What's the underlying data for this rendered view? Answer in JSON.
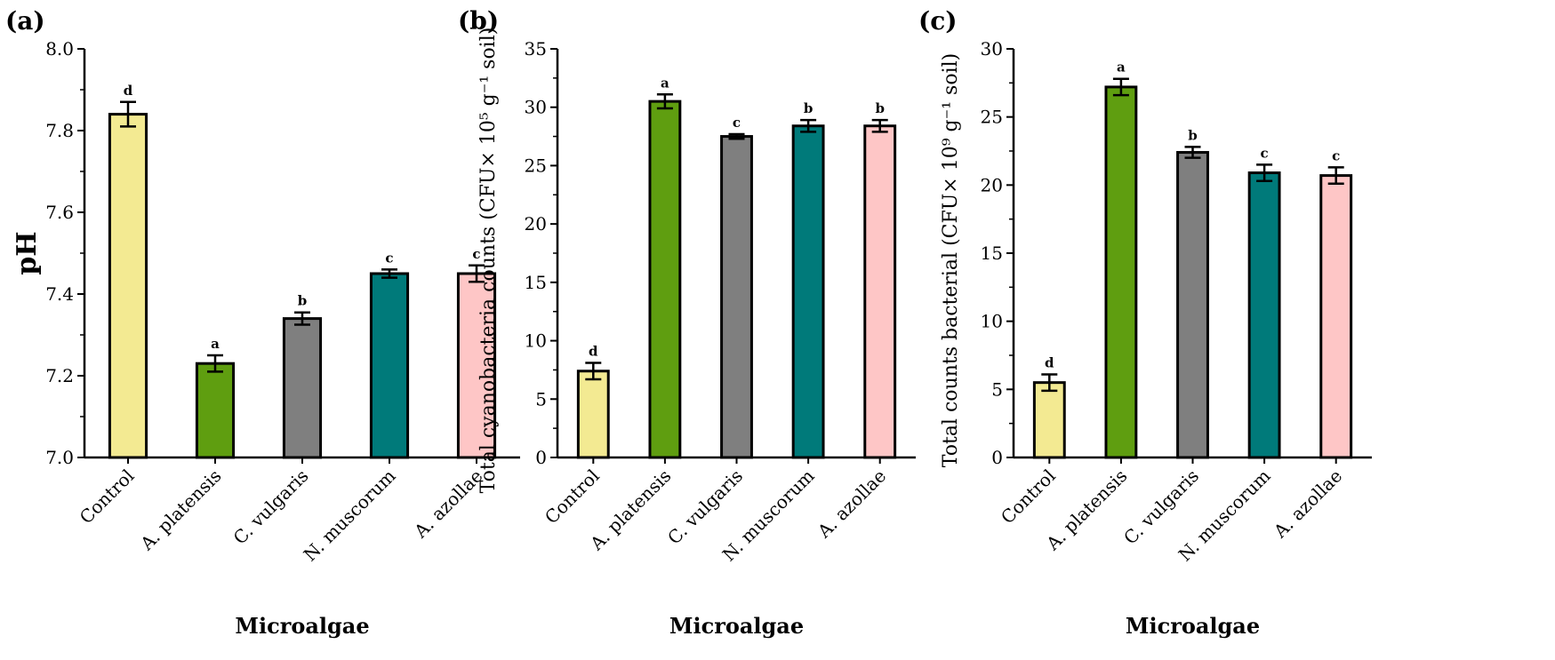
{
  "chart_data": [
    {
      "type": "bar",
      "panel_label": "(a)",
      "title": "",
      "xlabel": "Microalgae",
      "ylabel": "pH",
      "ylim": [
        7.0,
        8.0
      ],
      "yticks": [
        "7.0",
        "7.2",
        "7.4",
        "7.6",
        "7.8",
        "8.0"
      ],
      "categories": [
        "Control",
        "A. platensis",
        "C. vulgaris",
        "N. muscorum",
        "A. azollae"
      ],
      "values": [
        7.84,
        7.23,
        7.34,
        7.45,
        7.45
      ],
      "errors": [
        0.03,
        0.02,
        0.015,
        0.01,
        0.02
      ],
      "letters": [
        "d",
        "a",
        "b",
        "c",
        "c"
      ],
      "colors": [
        "#f3ea92",
        "#5f9e10",
        "#7f7f7f",
        "#007a7a",
        "#fec6c6"
      ]
    },
    {
      "type": "bar",
      "panel_label": "(b)",
      "title": "",
      "xlabel": "Microalgae",
      "ylabel": "Total cyanobacteria counts (CFU× 10⁵ g⁻¹ soil)",
      "ylim": [
        0,
        35
      ],
      "yticks": [
        "0",
        "5",
        "10",
        "15",
        "20",
        "25",
        "30",
        "35"
      ],
      "categories": [
        "Control",
        "A. platensis",
        "C. vulgaris",
        "N. muscorum",
        "A. azollae"
      ],
      "values": [
        7.4,
        30.5,
        27.5,
        28.4,
        28.4
      ],
      "errors": [
        0.7,
        0.6,
        0.2,
        0.5,
        0.5
      ],
      "letters": [
        "d",
        "a",
        "c",
        "b",
        "b"
      ],
      "colors": [
        "#f3ea92",
        "#5f9e10",
        "#7f7f7f",
        "#007a7a",
        "#fec6c6"
      ]
    },
    {
      "type": "bar",
      "panel_label": "(c)",
      "title": "",
      "xlabel": "Microalgae",
      "ylabel": "Total counts bacterial (CFU× 10⁹ g⁻¹ soil)",
      "ylim": [
        0,
        30
      ],
      "yticks": [
        "0",
        "5",
        "10",
        "15",
        "20",
        "25",
        "30"
      ],
      "categories": [
        "Control",
        "A. platensis",
        "C. vulgaris",
        "N. muscorum",
        "A. azollae"
      ],
      "values": [
        5.5,
        27.2,
        22.4,
        20.9,
        20.7
      ],
      "errors": [
        0.6,
        0.6,
        0.4,
        0.6,
        0.6
      ],
      "letters": [
        "d",
        "a",
        "b",
        "c",
        "c"
      ],
      "colors": [
        "#f3ea92",
        "#5f9e10",
        "#7f7f7f",
        "#007a7a",
        "#fec6c6"
      ]
    }
  ]
}
